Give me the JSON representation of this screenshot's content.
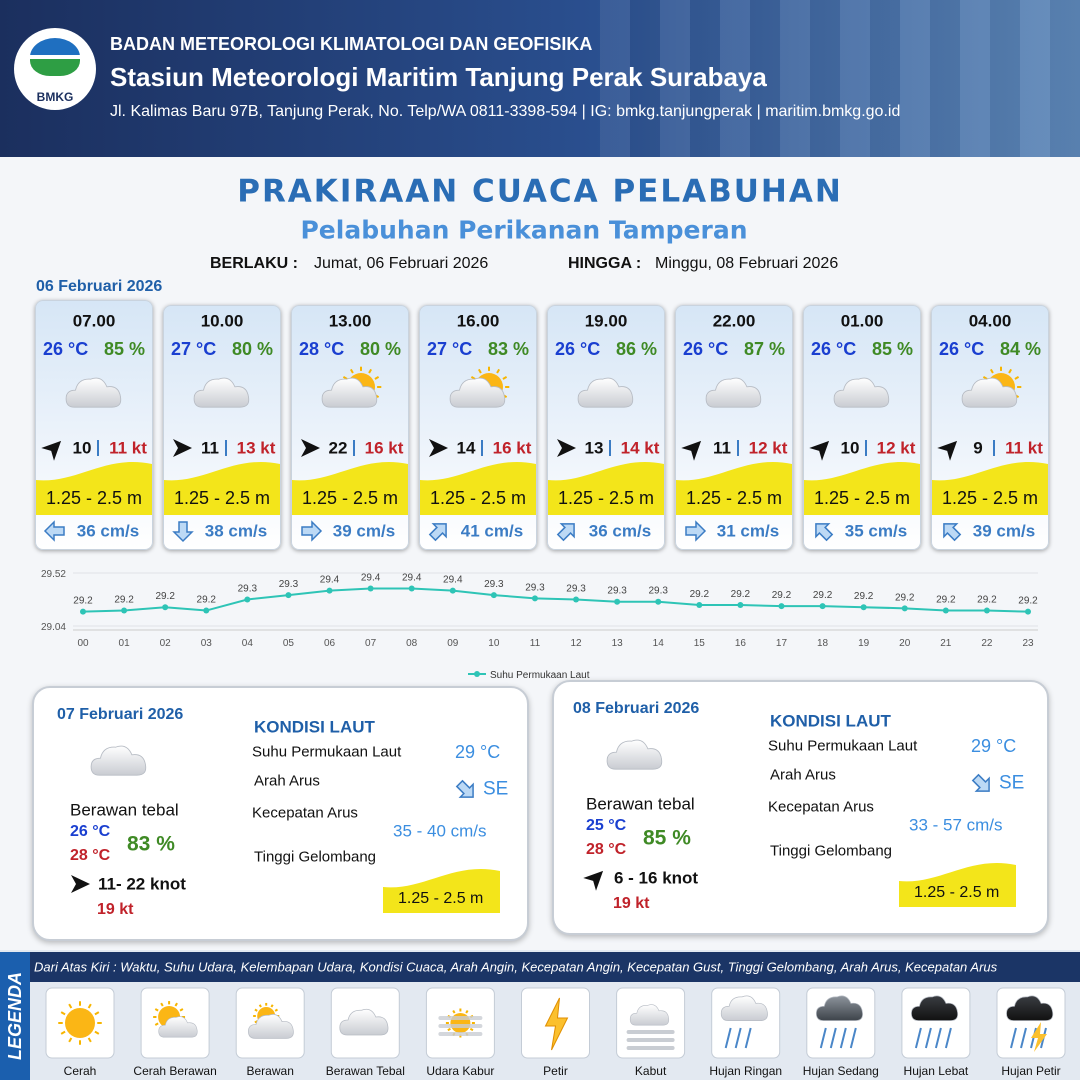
{
  "header": {
    "logo_text": "BMKG",
    "org": "BADAN METEOROLOGI KLIMATOLOGI DAN GEOFISIKA",
    "station": "Stasiun Meteorologi Maritim Tanjung Perak Surabaya",
    "address": "Jl. Kalimas Baru 97B, Tanjung Perak, No. Telp/WA 0811-3398-594 | IG: bmkg.tanjungperak | maritim.bmkg.go.id"
  },
  "title": "PRAKIRAAN CUACA PELABUHAN",
  "subtitle": "Pelabuhan Perikanan Tamperan",
  "validity": {
    "from_label": "BERLAKU :",
    "from": "Jumat, 06 Februari 2026",
    "to_label": "HINGGA :",
    "to": "Minggu, 08 Februari 2026"
  },
  "day_label": "06 Februari 2026",
  "cards": [
    {
      "time": "07.00",
      "temp": "26 °C",
      "humidity": "85 %",
      "wind": 10,
      "gust": "11 kt",
      "wave": "1.25 - 2.5 m",
      "current": "36 cm/s"
    },
    {
      "time": "10.00",
      "temp": "27 °C",
      "humidity": "80 %",
      "wind": 11,
      "gust": "13 kt",
      "wave": "1.25 - 2.5 m",
      "current": "38 cm/s"
    },
    {
      "time": "13.00",
      "temp": "28 °C",
      "humidity": "80 %",
      "wind": 22,
      "gust": "16 kt",
      "wave": "1.25 - 2.5 m",
      "current": "39 cm/s"
    },
    {
      "time": "16.00",
      "temp": "27 °C",
      "humidity": "83 %",
      "wind": 14,
      "gust": "16 kt",
      "wave": "1.25 - 2.5 m",
      "current": "41 cm/s"
    },
    {
      "time": "19.00",
      "temp": "26 °C",
      "humidity": "86 %",
      "wind": 13,
      "gust": "14 kt",
      "wave": "1.25 - 2.5 m",
      "current": "36 cm/s"
    },
    {
      "time": "22.00",
      "temp": "26 °C",
      "humidity": "87 %",
      "wind": 11,
      "gust": "12 kt",
      "wave": "1.25 - 2.5 m",
      "current": "31 cm/s"
    },
    {
      "time": "01.00",
      "temp": "26 °C",
      "humidity": "85 %",
      "wind": 10,
      "gust": "12 kt",
      "wave": "1.25 - 2.5 m",
      "current": "35 cm/s"
    },
    {
      "time": "04.00",
      "temp": "26 °C",
      "humidity": "84 %",
      "wind": 9,
      "gust": "11 kt",
      "wave": "1.25 - 2.5 m",
      "current": "39 cm/s"
    }
  ],
  "chart_data": {
    "type": "line",
    "categories": [
      "00",
      "01",
      "02",
      "03",
      "04",
      "05",
      "06",
      "07",
      "08",
      "09",
      "10",
      "11",
      "12",
      "13",
      "14",
      "15",
      "16",
      "17",
      "18",
      "19",
      "20",
      "21",
      "22",
      "23"
    ],
    "series": [
      {
        "name": "Suhu Permukaan Laut",
        "color": "#2ec4b6",
        "values": [
          29.17,
          29.18,
          29.21,
          29.18,
          29.28,
          29.32,
          29.36,
          29.38,
          29.38,
          29.36,
          29.32,
          29.29,
          29.28,
          29.26,
          29.26,
          29.23,
          29.23,
          29.22,
          29.22,
          29.21,
          29.2,
          29.18,
          29.18,
          29.17
        ],
        "value_labels": [
          "29.2",
          "29.2",
          "29.2",
          "29.2",
          "29.3",
          "29.3",
          "29.4",
          "29.4",
          "29.4",
          "29.4",
          "29.3",
          "29.3",
          "29.3",
          "29.3",
          "29.3",
          "29.2",
          "29.2",
          "29.2",
          "29.2",
          "29.2",
          "29.2",
          "29.2",
          "29.2",
          "29.2"
        ]
      }
    ],
    "ylim": [
      29.04,
      29.52
    ],
    "yticks": [
      29.04,
      29.52
    ],
    "legend": "bottom"
  },
  "daily": [
    {
      "date": "07 Februari 2026",
      "heading": "KONDISI LAUT",
      "weather": "Berawan tebal",
      "temp_min": "26 °C",
      "temp_max": "28 °C",
      "humidity": "83 %",
      "wind": "11- 22 knot",
      "gust": "19 kt",
      "sst_label": "Suhu Permukaan Laut",
      "sst": "29 °C",
      "current_dir_label": "Arah Arus",
      "current_dir": "SE",
      "current_speed_label": "Kecepatan Arus",
      "current_speed": "35 - 40 cm/s",
      "wave_label": "Tinggi Gelombang",
      "wave": "1.25 - 2.5 m"
    },
    {
      "date": "08 Februari 2026",
      "heading": "KONDISI LAUT",
      "weather": "Berawan tebal",
      "temp_min": "25 °C",
      "temp_max": "28 °C",
      "humidity": "85 %",
      "wind": "6 - 16 knot",
      "gust": "19 kt",
      "sst_label": "Suhu Permukaan Laut",
      "sst": "29 °C",
      "current_dir_label": "Arah Arus",
      "current_dir": "SE",
      "current_speed_label": "Kecepatan Arus",
      "current_speed": "33 - 57 cm/s",
      "wave_label": "Tinggi Gelombang",
      "wave": "1.25 - 2.5 m"
    }
  ],
  "legend": {
    "title": "LEGENDA",
    "description": "Dari Atas Kiri : Waktu, Suhu Udara, Kelembapan Udara, Kondisi Cuaca, Arah Angin, Kecepatan Angin, Kecepatan Gust, Tinggi Gelombang, Arah Arus, Kecepatan Arus",
    "items": [
      "Cerah",
      "Cerah Berawan",
      "Berawan",
      "Berawan Tebal",
      "Udara Kabur",
      "Petir",
      "Kabut",
      "Hujan Ringan",
      "Hujan Sedang",
      "Hujan Lebat",
      "Hujan Petir"
    ]
  }
}
